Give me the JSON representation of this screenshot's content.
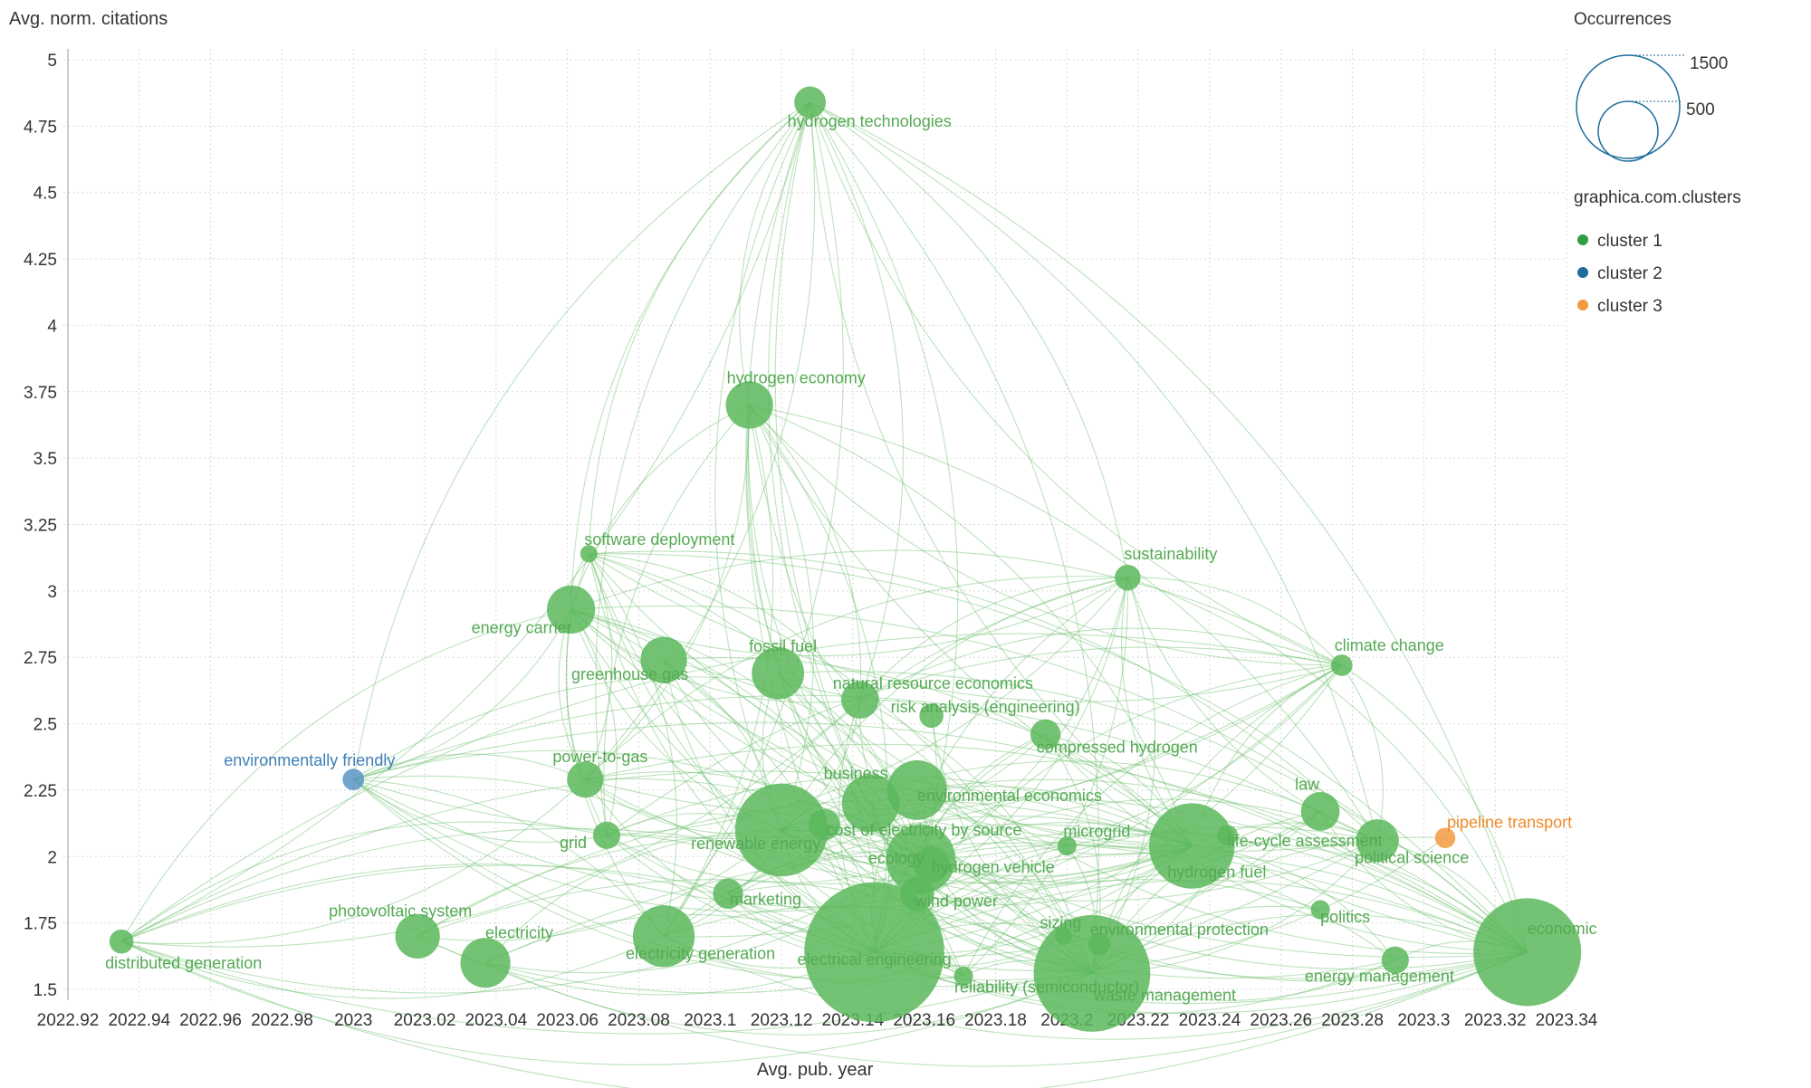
{
  "chart_data": {
    "type": "scatter",
    "xlabel": "Avg. pub. year",
    "ylabel": "Avg. norm. citations",
    "xlim": [
      2022.92,
      2023.34
    ],
    "ylim": [
      1.5,
      5
    ],
    "xticks": [
      "2022.92",
      "2022.94",
      "2022.96",
      "2022.98",
      "2023",
      "2023.02",
      "2023.04",
      "2023.06",
      "2023.08",
      "2023.1",
      "2023.12",
      "2023.14",
      "2023.16",
      "2023.18",
      "2023.2",
      "2023.22",
      "2023.24",
      "2023.26",
      "2023.28",
      "2023.3",
      "2023.32",
      "2023.34"
    ],
    "yticks": [
      "1.5",
      "1.75",
      "2",
      "2.25",
      "2.5",
      "2.75",
      "3",
      "3.25",
      "3.5",
      "3.75",
      "4",
      "4.25",
      "4.5",
      "4.75",
      "5"
    ],
    "grid": true,
    "size_legend": {
      "title": "Occurrences",
      "values": [
        "1500",
        "500"
      ]
    },
    "color_legend": {
      "title": "graphica.com.clusters",
      "items": [
        {
          "label": "cluster 1",
          "color": "#2e9e45"
        },
        {
          "label": "cluster 2",
          "color": "#1f6d9b"
        },
        {
          "label": "cluster 3",
          "color": "#f39a3f"
        }
      ]
    },
    "points": [
      {
        "label": "hydrogen technologies",
        "x": 2023.128,
        "y": 4.84,
        "occ": 60,
        "cluster": 1
      },
      {
        "label": "hydrogen economy",
        "x": 2023.111,
        "y": 3.7,
        "occ": 135,
        "cluster": 1
      },
      {
        "label": "software deployment",
        "x": 2023.066,
        "y": 3.14,
        "occ": 18,
        "cluster": 1
      },
      {
        "label": "energy carrier",
        "x": 2023.061,
        "y": 2.93,
        "occ": 140,
        "cluster": 1
      },
      {
        "label": "greenhouse gas",
        "x": 2023.087,
        "y": 2.74,
        "occ": 130,
        "cluster": 1
      },
      {
        "label": "fossil fuel",
        "x": 2023.119,
        "y": 2.69,
        "occ": 165,
        "cluster": 1
      },
      {
        "label": "natural resource economics",
        "x": 2023.142,
        "y": 2.59,
        "occ": 85,
        "cluster": 1
      },
      {
        "label": "risk analysis (engineering)",
        "x": 2023.162,
        "y": 2.53,
        "occ": 35,
        "cluster": 1
      },
      {
        "label": "sustainability",
        "x": 2023.217,
        "y": 3.05,
        "occ": 40,
        "cluster": 1
      },
      {
        "label": "climate change",
        "x": 2023.277,
        "y": 2.72,
        "occ": 28,
        "cluster": 1
      },
      {
        "label": "compressed hydrogen",
        "x": 2023.194,
        "y": 2.46,
        "occ": 55,
        "cluster": 1
      },
      {
        "label": "environmentally friendly",
        "x": 2023.0,
        "y": 2.29,
        "occ": 28,
        "cluster": 2
      },
      {
        "label": "power-to-gas",
        "x": 2023.065,
        "y": 2.29,
        "occ": 80,
        "cluster": 1
      },
      {
        "label": "business",
        "x": 2023.145,
        "y": 2.2,
        "occ": 200,
        "cluster": 1
      },
      {
        "label": "environmental economics",
        "x": 2023.158,
        "y": 2.25,
        "occ": 215,
        "cluster": 1
      },
      {
        "label": "grid",
        "x": 2023.071,
        "y": 2.08,
        "occ": 45,
        "cluster": 1
      },
      {
        "label": "renewable energy",
        "x": 2023.12,
        "y": 2.1,
        "occ": 520,
        "cluster": 1
      },
      {
        "label": "cost of electricity by source",
        "x": 2023.132,
        "y": 2.12,
        "occ": 60,
        "cluster": 1
      },
      {
        "label": "ecology",
        "x": 2023.159,
        "y": 1.99,
        "occ": 290,
        "cluster": 1
      },
      {
        "label": "hydrogen vehicle",
        "x": 2023.162,
        "y": 1.97,
        "occ": 80,
        "cluster": 1
      },
      {
        "label": "microgrid",
        "x": 2023.2,
        "y": 2.04,
        "occ": 22,
        "cluster": 1
      },
      {
        "label": "hydrogen fuel",
        "x": 2023.235,
        "y": 2.04,
        "occ": 440,
        "cluster": 1
      },
      {
        "label": "life-cycle assessment",
        "x": 2023.245,
        "y": 2.08,
        "occ": 25,
        "cluster": 1
      },
      {
        "label": "law",
        "x": 2023.271,
        "y": 2.17,
        "occ": 90,
        "cluster": 1
      },
      {
        "label": "political science",
        "x": 2023.287,
        "y": 2.06,
        "occ": 110,
        "cluster": 1
      },
      {
        "label": "pipeline transport",
        "x": 2023.306,
        "y": 2.07,
        "occ": 25,
        "cluster": 3
      },
      {
        "label": "marketing",
        "x": 2023.105,
        "y": 1.86,
        "occ": 55,
        "cluster": 1
      },
      {
        "label": "wind power",
        "x": 2023.158,
        "y": 1.86,
        "occ": 70,
        "cluster": 1
      },
      {
        "label": "photovoltaic system",
        "x": 2023.018,
        "y": 1.7,
        "occ": 120,
        "cluster": 1
      },
      {
        "label": "electricity",
        "x": 2023.037,
        "y": 1.6,
        "occ": 150,
        "cluster": 1
      },
      {
        "label": "electricity generation",
        "x": 2023.087,
        "y": 1.7,
        "occ": 230,
        "cluster": 1
      },
      {
        "label": "distributed generation",
        "x": 2022.935,
        "y": 1.68,
        "occ": 35,
        "cluster": 1
      },
      {
        "label": "electrical engineering",
        "x": 2023.146,
        "y": 1.64,
        "occ": 1180,
        "cluster": 1
      },
      {
        "label": "reliability (semiconductor)",
        "x": 2023.171,
        "y": 1.55,
        "occ": 22,
        "cluster": 1
      },
      {
        "label": "sizing",
        "x": 2023.199,
        "y": 1.7,
        "occ": 18,
        "cluster": 1
      },
      {
        "label": "environmental protection",
        "x": 2023.209,
        "y": 1.67,
        "occ": 30,
        "cluster": 1
      },
      {
        "label": "waste management",
        "x": 2023.207,
        "y": 1.56,
        "occ": 820,
        "cluster": 1
      },
      {
        "label": "politics",
        "x": 2023.271,
        "y": 1.8,
        "occ": 22,
        "cluster": 1
      },
      {
        "label": "energy management",
        "x": 2023.292,
        "y": 1.61,
        "occ": 45,
        "cluster": 1
      },
      {
        "label": "economic",
        "x": 2023.329,
        "y": 1.64,
        "occ": 700,
        "cluster": 1
      }
    ]
  }
}
